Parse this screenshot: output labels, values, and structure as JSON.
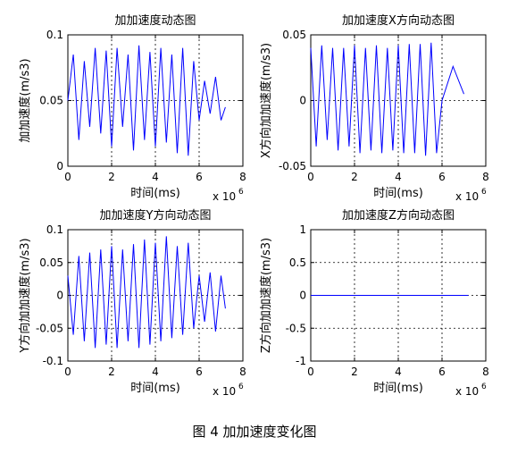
{
  "caption": "图 4  加加速度变化图",
  "chart_data": [
    {
      "type": "line",
      "title": "加加速度动态图",
      "xlabel": "时间(ms)",
      "ylabel": "加加速度(m/s3)",
      "x_exponent": "x 10",
      "x_exponent_power": "6",
      "xlim": [
        0,
        8
      ],
      "ylim": [
        0,
        0.1
      ],
      "xticks": [
        0,
        2,
        4,
        6,
        8
      ],
      "yticks": [
        0,
        0.05,
        0.1
      ],
      "xtick_labels": [
        "0",
        "2",
        "4",
        "6",
        "8"
      ],
      "ytick_labels": [
        "0",
        "0.05",
        "0.1"
      ],
      "grid": true,
      "line_color": "#0000ff",
      "series": [
        {
          "x": [
            0.0,
            0.25,
            0.5,
            0.75,
            1.0,
            1.25,
            1.5,
            1.75,
            2.0,
            2.25,
            2.5,
            2.75,
            3.0,
            3.25,
            3.5,
            3.75,
            4.0,
            4.25,
            4.5,
            4.75,
            5.0,
            5.25,
            5.5,
            5.75,
            6.0,
            6.25,
            6.5,
            6.75,
            7.0,
            7.2
          ],
          "y": [
            0.05,
            0.085,
            0.02,
            0.08,
            0.03,
            0.09,
            0.025,
            0.088,
            0.015,
            0.09,
            0.03,
            0.085,
            0.012,
            0.092,
            0.02,
            0.087,
            0.015,
            0.09,
            0.018,
            0.085,
            0.01,
            0.09,
            0.008,
            0.08,
            0.035,
            0.065,
            0.04,
            0.068,
            0.035,
            0.045
          ]
        }
      ]
    },
    {
      "type": "line",
      "title": "加加速度X方向动态图",
      "xlabel": "时间(ms)",
      "ylabel": "X方向加加速度(m/s3)",
      "x_exponent": "x 10",
      "x_exponent_power": "6",
      "xlim": [
        0,
        8
      ],
      "ylim": [
        -0.05,
        0.05
      ],
      "xticks": [
        0,
        2,
        4,
        6,
        8
      ],
      "yticks": [
        -0.05,
        0,
        0.05
      ],
      "xtick_labels": [
        "0",
        "2",
        "4",
        "6",
        "8"
      ],
      "ytick_labels": [
        "-0.05",
        "0",
        "0.05"
      ],
      "grid": true,
      "line_color": "#0000ff",
      "series": [
        {
          "x": [
            0.0,
            0.25,
            0.5,
            0.75,
            1.0,
            1.25,
            1.5,
            1.75,
            2.0,
            2.25,
            2.5,
            2.75,
            3.0,
            3.25,
            3.5,
            3.75,
            4.0,
            4.25,
            4.5,
            4.75,
            5.0,
            5.25,
            5.5,
            5.75,
            6.0,
            6.5,
            7.0
          ],
          "y": [
            0.04,
            -0.035,
            0.042,
            -0.03,
            0.04,
            -0.038,
            0.04,
            -0.035,
            0.042,
            -0.04,
            0.04,
            -0.038,
            0.042,
            -0.04,
            0.04,
            -0.038,
            0.042,
            -0.04,
            0.043,
            -0.04,
            0.043,
            -0.042,
            0.044,
            -0.04,
            0.0,
            0.026,
            0.005
          ]
        }
      ]
    },
    {
      "type": "line",
      "title": "加加速度Y方向动态图",
      "xlabel": "时间(ms)",
      "ylabel": "Y方向加加速度(m/s3)",
      "x_exponent": "x 10",
      "x_exponent_power": "6",
      "xlim": [
        0,
        8
      ],
      "ylim": [
        -0.1,
        0.1
      ],
      "xticks": [
        0,
        2,
        4,
        6,
        8
      ],
      "yticks": [
        -0.1,
        -0.05,
        0,
        0.05,
        0.1
      ],
      "xtick_labels": [
        "0",
        "2",
        "4",
        "6",
        "8"
      ],
      "ytick_labels": [
        "-0.1",
        "-0.05",
        "0",
        "0.05",
        "0.1"
      ],
      "grid": true,
      "line_color": "#0000ff",
      "series": [
        {
          "x": [
            0.0,
            0.25,
            0.5,
            0.75,
            1.0,
            1.25,
            1.5,
            1.75,
            2.0,
            2.25,
            2.5,
            2.75,
            3.0,
            3.25,
            3.5,
            3.75,
            4.0,
            4.25,
            4.5,
            4.75,
            5.0,
            5.25,
            5.5,
            5.75,
            6.0,
            6.25,
            6.5,
            6.75,
            7.0,
            7.2
          ],
          "y": [
            0.03,
            -0.06,
            0.06,
            -0.07,
            0.065,
            -0.08,
            0.07,
            -0.075,
            0.075,
            -0.08,
            0.07,
            -0.07,
            0.078,
            -0.08,
            0.085,
            -0.075,
            0.08,
            -0.07,
            0.09,
            -0.065,
            0.075,
            -0.06,
            0.08,
            -0.05,
            0.03,
            -0.04,
            0.035,
            -0.055,
            0.03,
            -0.02
          ]
        }
      ]
    },
    {
      "type": "line",
      "title": "加加速度Z方向动态图",
      "xlabel": "时间(ms)",
      "ylabel": "Z方向加加速度(m/s3)",
      "x_exponent": "x 10",
      "x_exponent_power": "6",
      "xlim": [
        0,
        8
      ],
      "ylim": [
        -1,
        1
      ],
      "xticks": [
        0,
        2,
        4,
        6,
        8
      ],
      "yticks": [
        -1,
        -0.5,
        0,
        0.5,
        1
      ],
      "xtick_labels": [
        "0",
        "2",
        "4",
        "6",
        "8"
      ],
      "ytick_labels": [
        "-1",
        "-0.5",
        "0",
        "0.5",
        "1"
      ],
      "grid": true,
      "line_color": "#0000ff",
      "series": [
        {
          "x": [
            0,
            7.2
          ],
          "y": [
            0,
            0
          ]
        }
      ]
    }
  ]
}
